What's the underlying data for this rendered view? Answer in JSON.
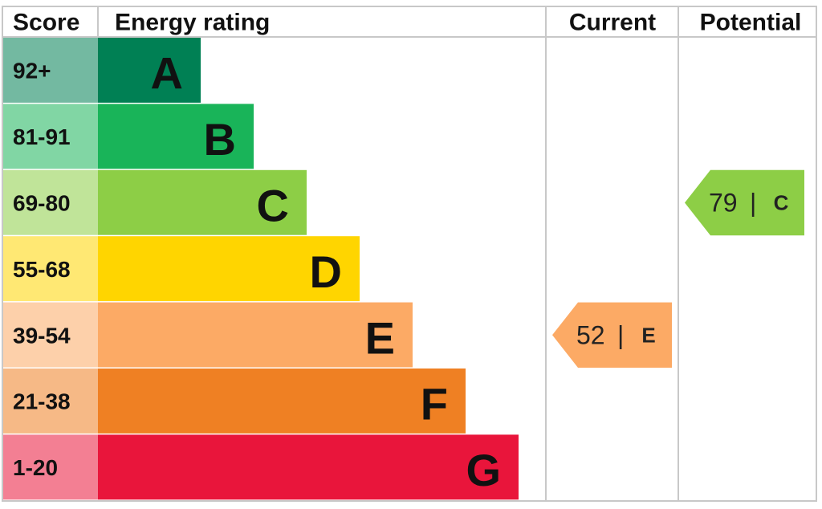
{
  "header": {
    "score": "Score",
    "rating": "Energy rating",
    "current": "Current",
    "potential": "Potential"
  },
  "bands": [
    {
      "score": "92+",
      "letter": "A",
      "color": "#008054"
    },
    {
      "score": "81-91",
      "letter": "B",
      "color": "#19b459"
    },
    {
      "score": "69-80",
      "letter": "C",
      "color": "#8dce46"
    },
    {
      "score": "55-68",
      "letter": "D",
      "color": "#ffd500"
    },
    {
      "score": "39-54",
      "letter": "E",
      "color": "#fcaa65"
    },
    {
      "score": "21-38",
      "letter": "F",
      "color": "#ef8023"
    },
    {
      "score": "1-20",
      "letter": "G",
      "color": "#e9153b"
    }
  ],
  "separator": "|",
  "current": {
    "value": 52,
    "letter": "E"
  },
  "potential": {
    "value": 79,
    "letter": "C"
  }
}
